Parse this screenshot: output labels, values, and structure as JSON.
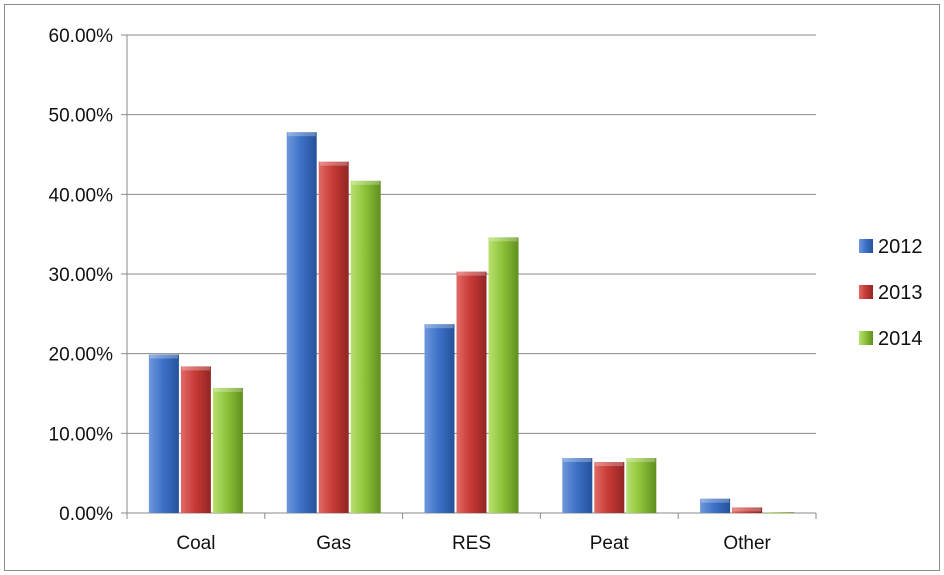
{
  "chart_data": {
    "type": "bar",
    "title": "",
    "xlabel": "",
    "ylabel": "",
    "categories": [
      "Coal",
      "Gas",
      "RES",
      "Peat",
      "Other"
    ],
    "series": [
      {
        "name": "2012",
        "values": [
          0.199,
          0.478,
          0.237,
          0.069,
          0.018
        ],
        "color": "#3d6fc4"
      },
      {
        "name": "2013",
        "values": [
          0.184,
          0.441,
          0.303,
          0.064,
          0.007
        ],
        "color": "#c83a36"
      },
      {
        "name": "2014",
        "values": [
          0.157,
          0.417,
          0.346,
          0.069,
          0.001
        ],
        "color": "#8fc43a"
      }
    ],
    "ylim": [
      0,
      0.6
    ],
    "y_ticks": [
      0,
      0.1,
      0.2,
      0.3,
      0.4,
      0.5,
      0.6
    ],
    "y_tick_labels": [
      "0.00%",
      "10.00%",
      "20.00%",
      "30.00%",
      "40.00%",
      "50.00%",
      "60.00%"
    ],
    "grid": true,
    "legend_position": "right"
  }
}
